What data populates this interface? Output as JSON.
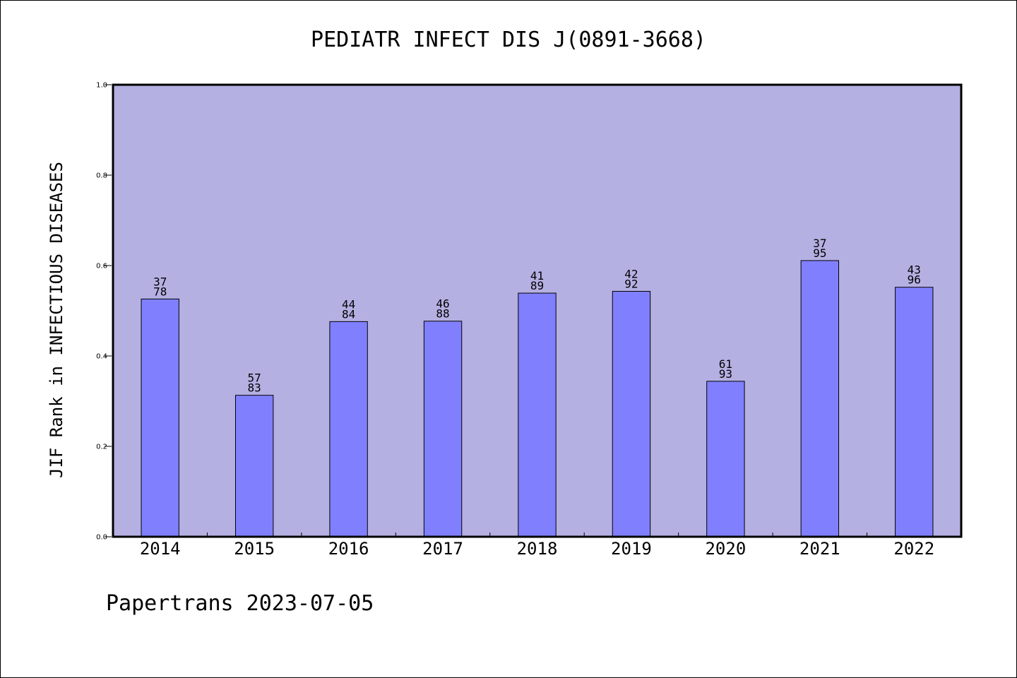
{
  "chart_data": {
    "type": "bar",
    "title": "PEDIATR INFECT DIS J(0891-3668)",
    "xlabel": "",
    "ylabel": "JIF Rank in INFECTIOUS DISEASES",
    "categories": [
      "2014",
      "2015",
      "2016",
      "2017",
      "2018",
      "2019",
      "2020",
      "2021",
      "2022"
    ],
    "values": [
      0.526,
      0.313,
      0.476,
      0.477,
      0.539,
      0.543,
      0.344,
      0.611,
      0.552
    ],
    "rank_labels": [
      [
        "37",
        "78"
      ],
      [
        "57",
        "83"
      ],
      [
        "44",
        "84"
      ],
      [
        "46",
        "88"
      ],
      [
        "41",
        "89"
      ],
      [
        "42",
        "92"
      ],
      [
        "61",
        "93"
      ],
      [
        "37",
        "95"
      ],
      [
        "43",
        "96"
      ]
    ],
    "ylim": [
      0,
      1.0
    ],
    "yticks": [
      "0.0",
      "0.2",
      "0.4",
      "0.6",
      "0.8",
      "1.0"
    ],
    "grid": false,
    "colors": {
      "plot_background": "#b5b0e2",
      "bar_fill": "#8080ff",
      "bar_stroke": "#000000"
    }
  },
  "footer": "Papertrans 2023-07-05"
}
